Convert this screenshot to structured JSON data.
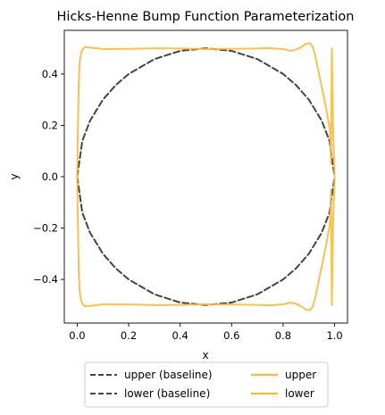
{
  "chart_data": {
    "type": "line",
    "title": "Hicks-Henne Bump Function Parameterization",
    "xlabel": "x",
    "ylabel": "y",
    "xlim": [
      -0.05,
      1.05
    ],
    "ylim": [
      -0.57,
      0.57
    ],
    "xticks": [
      0.0,
      0.2,
      0.4,
      0.6,
      0.8,
      1.0
    ],
    "xtick_labels": [
      "0.0",
      "0.2",
      "0.4",
      "0.6",
      "0.8",
      "1.0"
    ],
    "yticks": [
      -0.4,
      -0.2,
      0.0,
      0.2,
      0.4
    ],
    "ytick_labels": [
      "−0.4",
      "−0.2",
      "0.0",
      "0.2",
      "0.4"
    ],
    "grid": false,
    "legend_position": "below",
    "series": [
      {
        "name": "upper (baseline)",
        "style": "dashed",
        "color": "#444444",
        "x": [
          0.0,
          0.02,
          0.05,
          0.1,
          0.15,
          0.2,
          0.3,
          0.4,
          0.5,
          0.6,
          0.7,
          0.8,
          0.85,
          0.9,
          0.95,
          0.98,
          1.0
        ],
        "y": [
          0.0,
          0.14,
          0.218,
          0.3,
          0.357,
          0.4,
          0.458,
          0.49,
          0.5,
          0.49,
          0.458,
          0.4,
          0.357,
          0.3,
          0.218,
          0.14,
          0.0
        ]
      },
      {
        "name": "lower (baseline)",
        "style": "dashed",
        "color": "#444444",
        "x": [
          0.0,
          0.02,
          0.05,
          0.1,
          0.15,
          0.2,
          0.3,
          0.4,
          0.5,
          0.6,
          0.7,
          0.8,
          0.85,
          0.9,
          0.95,
          0.98,
          1.0
        ],
        "y": [
          0.0,
          -0.14,
          -0.218,
          -0.3,
          -0.357,
          -0.4,
          -0.458,
          -0.49,
          -0.5,
          -0.49,
          -0.458,
          -0.4,
          -0.357,
          -0.3,
          -0.218,
          -0.14,
          0.0
        ]
      },
      {
        "name": "upper",
        "style": "solid",
        "color": "#FDB93A",
        "x": [
          0.0,
          0.003,
          0.006,
          0.01,
          0.015,
          0.02,
          0.03,
          0.05,
          0.1,
          0.2,
          0.3,
          0.4,
          0.5,
          0.6,
          0.7,
          0.75,
          0.8,
          0.83,
          0.85,
          0.87,
          0.89,
          0.905,
          0.915,
          0.925,
          0.935,
          0.95,
          0.97,
          0.982,
          0.986,
          0.989,
          0.992,
          0.995,
          0.998,
          1.0
        ],
        "y": [
          0.0,
          0.2,
          0.37,
          0.45,
          0.48,
          0.495,
          0.505,
          0.503,
          0.497,
          0.498,
          0.5,
          0.499,
          0.497,
          0.498,
          0.499,
          0.501,
          0.497,
          0.49,
          0.495,
          0.505,
          0.518,
          0.52,
          0.505,
          0.47,
          0.42,
          0.35,
          0.25,
          0.18,
          0.05,
          0.5,
          0.3,
          0.15,
          0.06,
          0.0
        ]
      },
      {
        "name": "lower",
        "style": "solid",
        "color": "#FDB93A",
        "x": [
          0.0,
          0.003,
          0.006,
          0.01,
          0.015,
          0.02,
          0.03,
          0.05,
          0.1,
          0.2,
          0.3,
          0.4,
          0.5,
          0.6,
          0.7,
          0.75,
          0.8,
          0.83,
          0.85,
          0.87,
          0.89,
          0.905,
          0.915,
          0.925,
          0.935,
          0.95,
          0.97,
          0.982,
          0.986,
          0.989,
          0.992,
          0.995,
          0.998,
          1.0
        ],
        "y": [
          0.0,
          -0.2,
          -0.37,
          -0.45,
          -0.48,
          -0.495,
          -0.505,
          -0.503,
          -0.497,
          -0.498,
          -0.5,
          -0.499,
          -0.497,
          -0.498,
          -0.499,
          -0.501,
          -0.497,
          -0.49,
          -0.495,
          -0.505,
          -0.518,
          -0.52,
          -0.505,
          -0.47,
          -0.42,
          -0.35,
          -0.25,
          -0.18,
          -0.05,
          -0.5,
          -0.3,
          -0.15,
          -0.06,
          0.0
        ]
      }
    ]
  }
}
